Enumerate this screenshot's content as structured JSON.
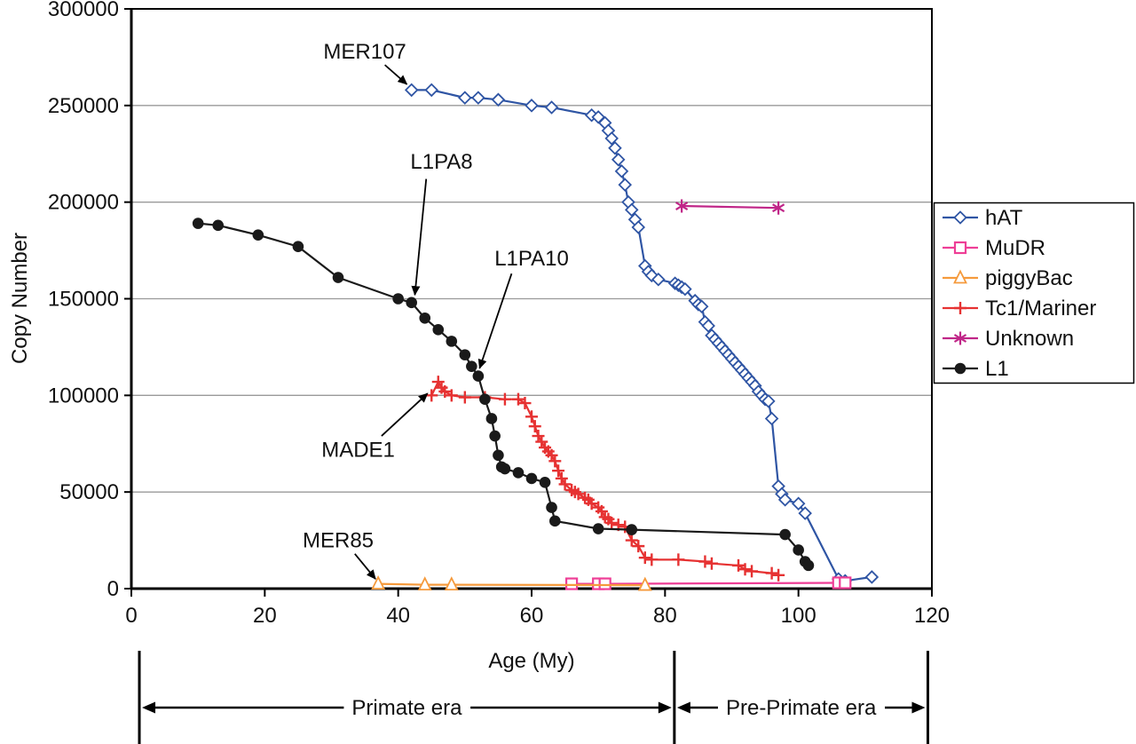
{
  "page": {
    "background": "#ffffff"
  },
  "chart_data": {
    "type": "line",
    "title": "",
    "xlabel": "Age (My)",
    "ylabel": "Copy Number",
    "xlim": [
      0,
      120
    ],
    "ylim": [
      0,
      300000
    ],
    "x_ticks": [
      0,
      20,
      40,
      60,
      80,
      100,
      120
    ],
    "y_ticks": [
      0,
      50000,
      100000,
      150000,
      200000,
      250000,
      300000
    ],
    "grid": "horizontal-gray",
    "legend_position": "right-middle",
    "series": [
      {
        "name": "hAT",
        "marker": "diamond",
        "color": "#2f55a4",
        "points": [
          [
            42,
            258000
          ],
          [
            45,
            258000
          ],
          [
            50,
            254000
          ],
          [
            52,
            254000
          ],
          [
            55,
            253000
          ],
          [
            60,
            250000
          ],
          [
            63,
            249000
          ],
          [
            69,
            245000
          ],
          [
            70,
            244000
          ],
          [
            71,
            241000
          ],
          [
            71.5,
            237000
          ],
          [
            72,
            233000
          ],
          [
            72.5,
            228000
          ],
          [
            73,
            222000
          ],
          [
            73.5,
            216000
          ],
          [
            74,
            209000
          ],
          [
            74.5,
            200000
          ],
          [
            75,
            196000
          ],
          [
            75.5,
            191000
          ],
          [
            76,
            187000
          ],
          [
            77,
            167000
          ],
          [
            77.5,
            164000
          ],
          [
            78,
            162000
          ],
          [
            79,
            160000
          ],
          [
            81.5,
            158000
          ],
          [
            82,
            157000
          ],
          [
            82.5,
            156000
          ],
          [
            83,
            155000
          ],
          [
            84.5,
            149000
          ],
          [
            85,
            147000
          ],
          [
            85.5,
            146000
          ],
          [
            86,
            138000
          ],
          [
            86.5,
            136000
          ],
          [
            87,
            131000
          ],
          [
            87.5,
            129000
          ],
          [
            88,
            127000
          ],
          [
            88.5,
            125000
          ],
          [
            89,
            123000
          ],
          [
            89.5,
            121000
          ],
          [
            90,
            119000
          ],
          [
            90.5,
            117000
          ],
          [
            91,
            115000
          ],
          [
            91.5,
            113000
          ],
          [
            92,
            111000
          ],
          [
            92.5,
            109000
          ],
          [
            93,
            107000
          ],
          [
            93.5,
            105000
          ],
          [
            94,
            102000
          ],
          [
            94.5,
            100000
          ],
          [
            95,
            98000
          ],
          [
            95.5,
            97000
          ],
          [
            96,
            88000
          ],
          [
            97,
            53000
          ],
          [
            97.5,
            49000
          ],
          [
            98,
            46000
          ],
          [
            100,
            44000
          ],
          [
            101,
            39000
          ],
          [
            106,
            5000
          ],
          [
            107,
            4000
          ],
          [
            111,
            6000
          ]
        ]
      },
      {
        "name": "MuDR",
        "marker": "square",
        "color": "#ee3e96",
        "points": [
          [
            66,
            2500
          ],
          [
            70,
            2500
          ],
          [
            71,
            2500
          ],
          [
            106,
            3000
          ],
          [
            107,
            3000
          ]
        ]
      },
      {
        "name": "piggyBac",
        "marker": "triangle",
        "color": "#f59a3c",
        "points": [
          [
            37,
            2500
          ],
          [
            44,
            2000
          ],
          [
            48,
            2000
          ],
          [
            77,
            1800
          ]
        ]
      },
      {
        "name": "Tc1/Mariner",
        "marker": "plus",
        "color": "#e63232",
        "points": [
          [
            45,
            100000
          ],
          [
            46,
            107000
          ],
          [
            46.5,
            104000
          ],
          [
            47,
            102000
          ],
          [
            48,
            100000
          ],
          [
            50,
            99000
          ],
          [
            53,
            99000
          ],
          [
            56,
            98000
          ],
          [
            58,
            98000
          ],
          [
            59,
            96000
          ],
          [
            60,
            89000
          ],
          [
            60.5,
            84000
          ],
          [
            61,
            79000
          ],
          [
            61.5,
            76000
          ],
          [
            62,
            73000
          ],
          [
            62.5,
            71000
          ],
          [
            63,
            69000
          ],
          [
            63.5,
            66000
          ],
          [
            64,
            61000
          ],
          [
            64.5,
            57000
          ],
          [
            65,
            54000
          ],
          [
            66,
            51000
          ],
          [
            66.5,
            50000
          ],
          [
            67,
            49000
          ],
          [
            68,
            47000
          ],
          [
            68.5,
            46000
          ],
          [
            69,
            44000
          ],
          [
            70,
            42000
          ],
          [
            70.5,
            40000
          ],
          [
            71,
            37000
          ],
          [
            71.5,
            36000
          ],
          [
            72,
            34000
          ],
          [
            73,
            33000
          ],
          [
            74,
            32000
          ],
          [
            75,
            25000
          ],
          [
            76,
            22000
          ],
          [
            77,
            16000
          ],
          [
            78,
            15000
          ],
          [
            82,
            15000
          ],
          [
            86,
            14000
          ],
          [
            87,
            13000
          ],
          [
            91,
            12000
          ],
          [
            92,
            10000
          ],
          [
            93,
            9000
          ],
          [
            96,
            8000
          ],
          [
            97,
            7000
          ]
        ]
      },
      {
        "name": "Unknown",
        "marker": "asterisk",
        "color": "#c02688",
        "points": [
          [
            82.5,
            198000
          ],
          [
            97,
            197000
          ]
        ]
      },
      {
        "name": "L1",
        "marker": "circle",
        "color": "#1a1a1a",
        "points": [
          [
            10,
            189000
          ],
          [
            13,
            188000
          ],
          [
            19,
            183000
          ],
          [
            25,
            177000
          ],
          [
            31,
            161000
          ],
          [
            40,
            150000
          ],
          [
            42,
            148000
          ],
          [
            44,
            140000
          ],
          [
            46,
            134000
          ],
          [
            48,
            128000
          ],
          [
            50,
            121000
          ],
          [
            51,
            115000
          ],
          [
            52,
            110000
          ],
          [
            53,
            98000
          ],
          [
            54,
            88000
          ],
          [
            54.5,
            79000
          ],
          [
            55,
            69000
          ],
          [
            55.5,
            63000
          ],
          [
            56,
            62000
          ],
          [
            58,
            60000
          ],
          [
            60,
            57000
          ],
          [
            62,
            55000
          ],
          [
            63,
            42000
          ],
          [
            63.5,
            35000
          ],
          [
            70,
            31000
          ],
          [
            75,
            30500
          ],
          [
            98,
            28000
          ],
          [
            100,
            20000
          ],
          [
            101,
            14000
          ],
          [
            101.5,
            12000
          ]
        ]
      }
    ],
    "annotations": [
      {
        "label": "MER107",
        "text_at": [
          35,
          278000
        ],
        "arrow_from": [
          38,
          271000
        ],
        "arrow_to": [
          41.3,
          261000
        ]
      },
      {
        "label": "L1PA8",
        "text_at": [
          46.5,
          221000
        ],
        "arrow_from": [
          44.2,
          212000
        ],
        "arrow_to": [
          42.5,
          152000
        ]
      },
      {
        "label": "L1PA10",
        "text_at": [
          60,
          171000
        ],
        "arrow_from": [
          57,
          163000
        ],
        "arrow_to": [
          52.2,
          114000
        ]
      },
      {
        "label": "MADE1",
        "text_at": [
          34,
          72000
        ],
        "arrow_from": [
          37.5,
          79000
        ],
        "arrow_to": [
          44.4,
          101000
        ]
      },
      {
        "label": "MER85",
        "text_at": [
          31,
          25000
        ],
        "arrow_from": [
          33.5,
          18000
        ],
        "arrow_to": [
          36.6,
          5000
        ]
      }
    ],
    "era_axis": {
      "dividers": [
        1.2,
        81.4,
        119.4
      ],
      "eras": [
        {
          "label": "Primate era",
          "from": 1.6,
          "to": 81
        },
        {
          "label": "Pre-Primate era",
          "from": 81.8,
          "to": 119
        }
      ]
    }
  }
}
